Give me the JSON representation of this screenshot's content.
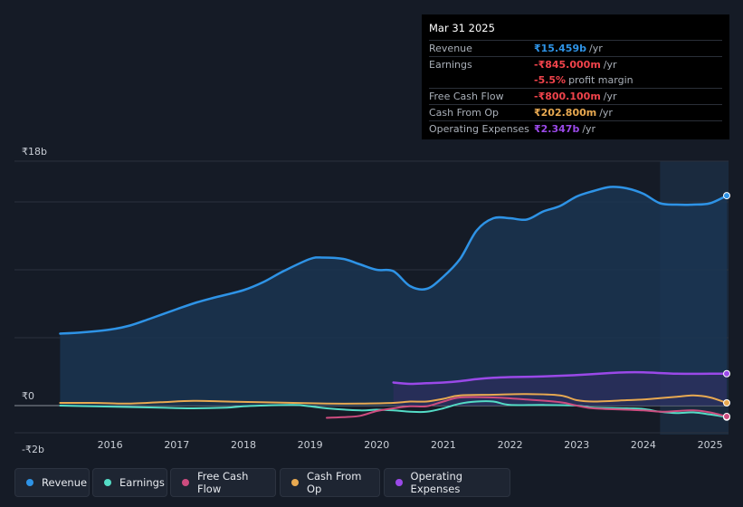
{
  "tooltip": {
    "date": "Mar 31 2025",
    "rows": [
      {
        "label": "Revenue",
        "value": "₹15.459b",
        "unit": "/yr",
        "color": "#2e93e6"
      },
      {
        "label": "Earnings",
        "value": "-₹845.000m",
        "unit": "/yr",
        "color": "#f0434b"
      },
      {
        "label": "",
        "value": "-5.5%",
        "unit": "profit margin",
        "color": "#f0434b"
      },
      {
        "label": "Free Cash Flow",
        "value": "-₹800.100m",
        "unit": "/yr",
        "color": "#f0434b"
      },
      {
        "label": "Cash From Op",
        "value": "₹202.800m",
        "unit": "/yr",
        "color": "#e8a951"
      },
      {
        "label": "Operating Expenses",
        "value": "₹2.347b",
        "unit": "/yr",
        "color": "#9a49e8"
      }
    ]
  },
  "legend": [
    {
      "label": "Revenue",
      "color": "#2e93e6"
    },
    {
      "label": "Earnings",
      "color": "#54dcc6"
    },
    {
      "label": "Free Cash Flow",
      "color": "#cd4c7f"
    },
    {
      "label": "Cash From Op",
      "color": "#e8a951"
    },
    {
      "label": "Operating Expenses",
      "color": "#9a49e8"
    }
  ],
  "chart_data": {
    "type": "line",
    "title": "",
    "xlabel": "",
    "ylabel": "",
    "y_tick_labels": [
      "₹18b",
      "₹0",
      "-₹2b"
    ],
    "y_ticks": [
      18,
      0,
      -2
    ],
    "ylim": [
      -2,
      18
    ],
    "xlim": [
      2015.0,
      2025.25
    ],
    "x_tick_labels": [
      "2016",
      "2017",
      "2018",
      "2019",
      "2020",
      "2021",
      "2022",
      "2023",
      "2024",
      "2025"
    ],
    "x_ticks": [
      2016,
      2017,
      2018,
      2019,
      2020,
      2021,
      2022,
      2023,
      2024,
      2025
    ],
    "forecast_start": 2024.25,
    "series": [
      {
        "name": "Revenue",
        "color": "#2e93e6",
        "points": [
          [
            2015.25,
            5.3
          ],
          [
            2015.6,
            5.4
          ],
          [
            2016.0,
            5.6
          ],
          [
            2016.3,
            5.9
          ],
          [
            2016.6,
            6.4
          ],
          [
            2017.0,
            7.1
          ],
          [
            2017.3,
            7.6
          ],
          [
            2017.6,
            8.0
          ],
          [
            2018.0,
            8.5
          ],
          [
            2018.3,
            9.1
          ],
          [
            2018.6,
            9.9
          ],
          [
            2019.0,
            10.8
          ],
          [
            2019.2,
            10.9
          ],
          [
            2019.5,
            10.8
          ],
          [
            2019.75,
            10.4
          ],
          [
            2020.0,
            10.0
          ],
          [
            2020.25,
            9.9
          ],
          [
            2020.5,
            8.8
          ],
          [
            2020.75,
            8.6
          ],
          [
            2021.0,
            9.5
          ],
          [
            2021.25,
            10.8
          ],
          [
            2021.5,
            12.9
          ],
          [
            2021.75,
            13.8
          ],
          [
            2022.0,
            13.8
          ],
          [
            2022.25,
            13.7
          ],
          [
            2022.5,
            14.3
          ],
          [
            2022.75,
            14.7
          ],
          [
            2023.0,
            15.4
          ],
          [
            2023.25,
            15.8
          ],
          [
            2023.5,
            16.1
          ],
          [
            2023.75,
            16.0
          ],
          [
            2024.0,
            15.6
          ],
          [
            2024.25,
            14.9
          ],
          [
            2024.5,
            14.8
          ],
          [
            2024.75,
            14.8
          ],
          [
            2025.0,
            14.9
          ],
          [
            2025.25,
            15.46
          ]
        ]
      },
      {
        "name": "Operating Expenses",
        "color": "#9a49e8",
        "points": [
          [
            2020.25,
            1.7
          ],
          [
            2020.5,
            1.6
          ],
          [
            2020.75,
            1.65
          ],
          [
            2021.0,
            1.7
          ],
          [
            2021.25,
            1.8
          ],
          [
            2021.5,
            1.95
          ],
          [
            2021.75,
            2.05
          ],
          [
            2022.0,
            2.1
          ],
          [
            2022.5,
            2.15
          ],
          [
            2023.0,
            2.25
          ],
          [
            2023.5,
            2.4
          ],
          [
            2023.75,
            2.45
          ],
          [
            2024.0,
            2.45
          ],
          [
            2024.5,
            2.35
          ],
          [
            2025.0,
            2.35
          ],
          [
            2025.25,
            2.35
          ]
        ]
      },
      {
        "name": "Cash From Op",
        "color": "#e8a951",
        "points": [
          [
            2015.25,
            0.2
          ],
          [
            2015.75,
            0.2
          ],
          [
            2016.25,
            0.15
          ],
          [
            2016.75,
            0.25
          ],
          [
            2017.25,
            0.35
          ],
          [
            2017.75,
            0.3
          ],
          [
            2018.25,
            0.25
          ],
          [
            2018.75,
            0.2
          ],
          [
            2019.25,
            0.15
          ],
          [
            2019.75,
            0.15
          ],
          [
            2020.25,
            0.2
          ],
          [
            2020.5,
            0.3
          ],
          [
            2020.75,
            0.3
          ],
          [
            2021.0,
            0.5
          ],
          [
            2021.25,
            0.75
          ],
          [
            2021.75,
            0.8
          ],
          [
            2022.25,
            0.85
          ],
          [
            2022.75,
            0.75
          ],
          [
            2023.0,
            0.4
          ],
          [
            2023.25,
            0.3
          ],
          [
            2023.75,
            0.4
          ],
          [
            2024.0,
            0.45
          ],
          [
            2024.25,
            0.55
          ],
          [
            2024.5,
            0.65
          ],
          [
            2024.75,
            0.75
          ],
          [
            2025.0,
            0.6
          ],
          [
            2025.25,
            0.2
          ]
        ]
      },
      {
        "name": "Free Cash Flow",
        "color": "#cd4c7f",
        "points": [
          [
            2019.25,
            -0.9
          ],
          [
            2019.5,
            -0.85
          ],
          [
            2019.75,
            -0.75
          ],
          [
            2020.0,
            -0.4
          ],
          [
            2020.25,
            -0.2
          ],
          [
            2020.5,
            -0.05
          ],
          [
            2020.75,
            -0.05
          ],
          [
            2021.0,
            0.3
          ],
          [
            2021.25,
            0.6
          ],
          [
            2021.75,
            0.6
          ],
          [
            2022.25,
            0.45
          ],
          [
            2022.75,
            0.25
          ],
          [
            2023.0,
            0.0
          ],
          [
            2023.25,
            -0.2
          ],
          [
            2023.75,
            -0.3
          ],
          [
            2024.0,
            -0.35
          ],
          [
            2024.25,
            -0.45
          ],
          [
            2024.5,
            -0.4
          ],
          [
            2024.75,
            -0.35
          ],
          [
            2025.0,
            -0.5
          ],
          [
            2025.25,
            -0.8
          ]
        ]
      },
      {
        "name": "Earnings",
        "color": "#54dcc6",
        "points": [
          [
            2015.25,
            0.0
          ],
          [
            2015.75,
            -0.05
          ],
          [
            2016.25,
            -0.1
          ],
          [
            2016.75,
            -0.15
          ],
          [
            2017.25,
            -0.2
          ],
          [
            2017.75,
            -0.15
          ],
          [
            2018.0,
            -0.05
          ],
          [
            2018.25,
            0.0
          ],
          [
            2018.75,
            0.05
          ],
          [
            2019.0,
            -0.05
          ],
          [
            2019.25,
            -0.2
          ],
          [
            2019.75,
            -0.35
          ],
          [
            2020.0,
            -0.3
          ],
          [
            2020.25,
            -0.35
          ],
          [
            2020.5,
            -0.45
          ],
          [
            2020.75,
            -0.45
          ],
          [
            2021.0,
            -0.2
          ],
          [
            2021.25,
            0.15
          ],
          [
            2021.5,
            0.3
          ],
          [
            2021.75,
            0.3
          ],
          [
            2022.0,
            0.05
          ],
          [
            2022.5,
            0.05
          ],
          [
            2023.0,
            0.0
          ],
          [
            2023.25,
            -0.15
          ],
          [
            2023.75,
            -0.2
          ],
          [
            2024.0,
            -0.25
          ],
          [
            2024.25,
            -0.45
          ],
          [
            2024.5,
            -0.55
          ],
          [
            2024.75,
            -0.5
          ],
          [
            2025.0,
            -0.65
          ],
          [
            2025.25,
            -0.85
          ]
        ]
      }
    ]
  }
}
